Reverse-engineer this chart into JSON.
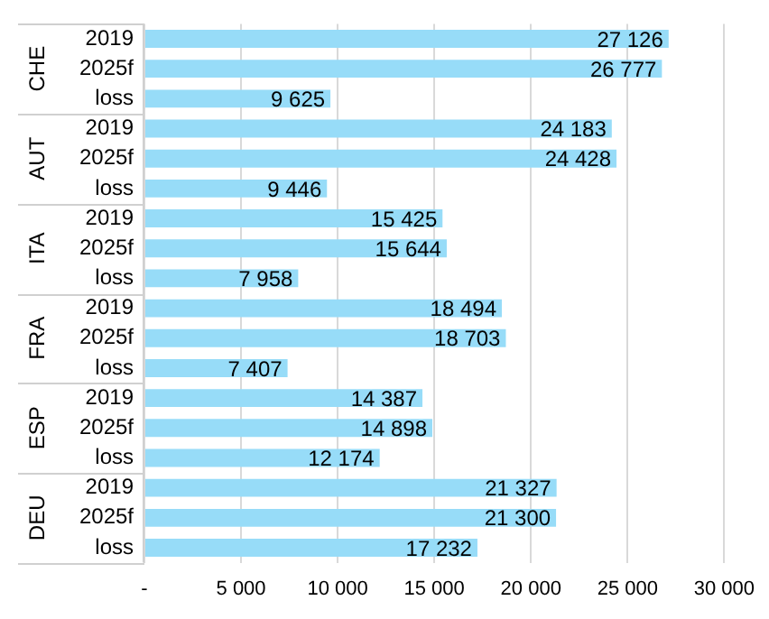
{
  "chart_data": {
    "type": "bar",
    "orientation": "horizontal",
    "categories": [
      "2019",
      "2025f",
      "loss",
      "2019",
      "2025f",
      "loss",
      "2019",
      "2025f",
      "loss",
      "2019",
      "2025f",
      "loss",
      "2019",
      "2025f",
      "loss",
      "2019",
      "2025f",
      "loss"
    ],
    "values": [
      27126,
      26777,
      9625,
      24183,
      24428,
      9446,
      15425,
      15644,
      7958,
      18494,
      18703,
      7407,
      14387,
      14898,
      12174,
      21327,
      21300,
      17232
    ],
    "value_labels": [
      "27 126",
      "26 777",
      "9 625",
      "24 183",
      "24 428",
      "9 446",
      "15 425",
      "15 644",
      "7 958",
      "18 494",
      "18 703",
      "7 407",
      "14 387",
      "14 898",
      "12 174",
      "21 327",
      "21 300",
      "17 232"
    ],
    "color": "#97dcf8",
    "annotations": [
      "CHE",
      "AUT",
      "ITA",
      "FRA",
      "ESP",
      "DEU"
    ],
    "xlim": [
      0,
      30000
    ],
    "xticks": [
      {
        "value": 0,
        "label": "-"
      },
      {
        "value": 5000,
        "label": "5 000"
      },
      {
        "value": 10000,
        "label": "10 000"
      },
      {
        "value": 15000,
        "label": "15 000"
      },
      {
        "value": 20000,
        "label": "20 000"
      },
      {
        "value": 25000,
        "label": "25 000"
      },
      {
        "value": 30000,
        "label": "30 000"
      }
    ],
    "grid": "x",
    "legend": false
  }
}
